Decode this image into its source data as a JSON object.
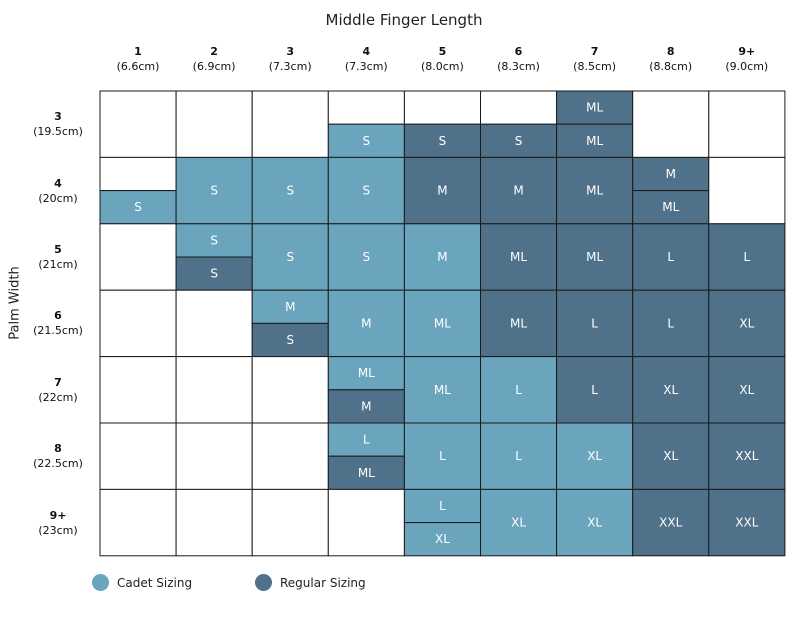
{
  "colors": {
    "cadet": "#6aa4bd",
    "regular": "#4f7189",
    "empty": "#ffffff",
    "border": "#1a1a1a"
  },
  "chart_data": {
    "type": "table",
    "title": "Middle Finger Length",
    "ylabel": "Palm Width",
    "columns": [
      {
        "num": "1",
        "size": "(6.6cm)"
      },
      {
        "num": "2",
        "size": "(6.9cm)"
      },
      {
        "num": "3",
        "size": "(7.3cm)"
      },
      {
        "num": "4",
        "size": "(7.3cm)"
      },
      {
        "num": "5",
        "size": "(8.0cm)"
      },
      {
        "num": "6",
        "size": "(8.3cm)"
      },
      {
        "num": "7",
        "size": "(8.5cm)"
      },
      {
        "num": "8",
        "size": "(8.8cm)"
      },
      {
        "num": "9+",
        "size": "(9.0cm)"
      }
    ],
    "rows": [
      {
        "num": "3",
        "size": "(19.5cm)"
      },
      {
        "num": "4",
        "size": "(20cm)"
      },
      {
        "num": "5",
        "size": "(21cm)"
      },
      {
        "num": "6",
        "size": "(21.5cm)"
      },
      {
        "num": "7",
        "size": "(22cm)"
      },
      {
        "num": "8",
        "size": "(22.5cm)"
      },
      {
        "num": "9+",
        "size": "(23cm)"
      }
    ],
    "cells": [
      [
        [],
        [],
        [],
        [
          [
            "",
            "empty"
          ],
          [
            "S",
            "cadet"
          ]
        ],
        [
          [
            "",
            "empty"
          ],
          [
            "S",
            "regular"
          ]
        ],
        [
          [
            "",
            "empty"
          ],
          [
            "S",
            "regular"
          ]
        ],
        [
          [
            "ML",
            "regular"
          ],
          [
            "ML",
            "regular"
          ]
        ],
        [],
        []
      ],
      [
        [
          [
            "",
            "empty"
          ],
          [
            "S",
            "cadet"
          ]
        ],
        [
          [
            "S",
            "cadet"
          ]
        ],
        [
          [
            "S",
            "cadet"
          ]
        ],
        [
          [
            "S",
            "cadet"
          ]
        ],
        [
          [
            "M",
            "regular"
          ]
        ],
        [
          [
            "M",
            "regular"
          ]
        ],
        [
          [
            "ML",
            "regular"
          ]
        ],
        [
          [
            "M",
            "regular"
          ],
          [
            "ML",
            "regular"
          ]
        ],
        []
      ],
      [
        [],
        [
          [
            "S",
            "cadet"
          ],
          [
            "S",
            "regular"
          ]
        ],
        [
          [
            "S",
            "cadet"
          ]
        ],
        [
          [
            "S",
            "cadet"
          ]
        ],
        [
          [
            "M",
            "cadet"
          ]
        ],
        [
          [
            "ML",
            "regular"
          ]
        ],
        [
          [
            "ML",
            "regular"
          ]
        ],
        [
          [
            "L",
            "regular"
          ]
        ],
        [
          [
            "L",
            "regular"
          ]
        ]
      ],
      [
        [],
        [],
        [
          [
            "M",
            "cadet"
          ],
          [
            "S",
            "regular"
          ]
        ],
        [
          [
            "M",
            "cadet"
          ]
        ],
        [
          [
            "ML",
            "cadet"
          ]
        ],
        [
          [
            "ML",
            "regular"
          ]
        ],
        [
          [
            "L",
            "regular"
          ]
        ],
        [
          [
            "L",
            "regular"
          ]
        ],
        [
          [
            "XL",
            "regular"
          ]
        ]
      ],
      [
        [],
        [],
        [],
        [
          [
            "ML",
            "cadet"
          ],
          [
            "M",
            "regular"
          ]
        ],
        [
          [
            "ML",
            "cadet"
          ]
        ],
        [
          [
            "L",
            "cadet"
          ]
        ],
        [
          [
            "L",
            "regular"
          ]
        ],
        [
          [
            "XL",
            "regular"
          ]
        ],
        [
          [
            "XL",
            "regular"
          ]
        ]
      ],
      [
        [],
        [],
        [],
        [
          [
            "L",
            "cadet"
          ],
          [
            "ML",
            "regular"
          ]
        ],
        [
          [
            "L",
            "cadet"
          ]
        ],
        [
          [
            "L",
            "cadet"
          ]
        ],
        [
          [
            "XL",
            "cadet"
          ]
        ],
        [
          [
            "XL",
            "regular"
          ]
        ],
        [
          [
            "XXL",
            "regular"
          ]
        ]
      ],
      [
        [],
        [],
        [],
        [],
        [
          [
            "L",
            "cadet"
          ],
          [
            "XL",
            "cadet"
          ]
        ],
        [
          [
            "XL",
            "cadet"
          ]
        ],
        [
          [
            "XL",
            "cadet"
          ]
        ],
        [
          [
            "XXL",
            "regular"
          ]
        ],
        [
          [
            "XXL",
            "regular"
          ]
        ]
      ]
    ],
    "legend": [
      {
        "label": "Cadet Sizing",
        "key": "cadet"
      },
      {
        "label": "Regular Sizing",
        "key": "regular"
      }
    ],
    "legend_position": "bottom-left"
  }
}
